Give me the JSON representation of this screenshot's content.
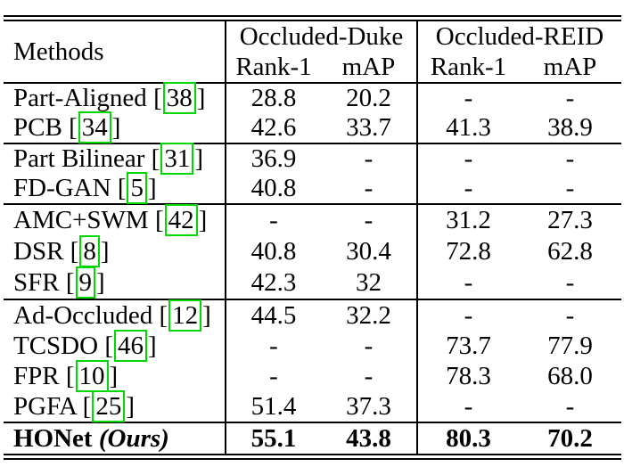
{
  "colors": {
    "citation_box": "#00d800",
    "rule": "#000000",
    "text": "#000000",
    "background": "#ffffff"
  },
  "table": {
    "header": {
      "methods_label": "Methods",
      "col_groups": [
        {
          "label": "Occluded-Duke",
          "sub": [
            "Rank-1",
            "mAP"
          ]
        },
        {
          "label": "Occluded-REID",
          "sub": [
            "Rank-1",
            "mAP"
          ]
        }
      ]
    },
    "groups": [
      {
        "rows": [
          {
            "method": "Part-Aligned",
            "cite": "38",
            "values": [
              "28.8",
              "20.2",
              "-",
              "-"
            ]
          },
          {
            "method": "PCB",
            "cite": "34",
            "values": [
              "42.6",
              "33.7",
              "41.3",
              "38.9"
            ]
          }
        ]
      },
      {
        "rows": [
          {
            "method": "Part Bilinear",
            "cite": "31",
            "values": [
              "36.9",
              "-",
              "-",
              "-"
            ]
          },
          {
            "method": "FD-GAN",
            "cite": "5",
            "values": [
              "40.8",
              "-",
              "-",
              "-"
            ]
          }
        ]
      },
      {
        "rows": [
          {
            "method": "AMC+SWM",
            "cite": "42",
            "values": [
              "-",
              "-",
              "31.2",
              "27.3"
            ]
          },
          {
            "method": "DSR",
            "cite": "8",
            "values": [
              "40.8",
              "30.4",
              "72.8",
              "62.8"
            ]
          },
          {
            "method": "SFR",
            "cite": "9",
            "values": [
              "42.3",
              "32",
              "-",
              "-"
            ]
          }
        ]
      },
      {
        "rows": [
          {
            "method": "Ad-Occluded",
            "cite": "12",
            "values": [
              "44.5",
              "32.2",
              "-",
              "-"
            ]
          },
          {
            "method": "TCSDO",
            "cite": "46",
            "values": [
              "-",
              "-",
              "73.7",
              "77.9"
            ]
          },
          {
            "method": "FPR",
            "cite": "10",
            "values": [
              "-",
              "-",
              "78.3",
              "68.0"
            ]
          },
          {
            "method": "PGFA",
            "cite": "25",
            "values": [
              "51.4",
              "37.3",
              "-",
              "-"
            ]
          }
        ]
      },
      {
        "rows": [
          {
            "method": "HONet",
            "paren_italic": "Ours",
            "bold": true,
            "values": [
              "55.1",
              "43.8",
              "80.3",
              "70.2"
            ]
          }
        ]
      }
    ]
  }
}
